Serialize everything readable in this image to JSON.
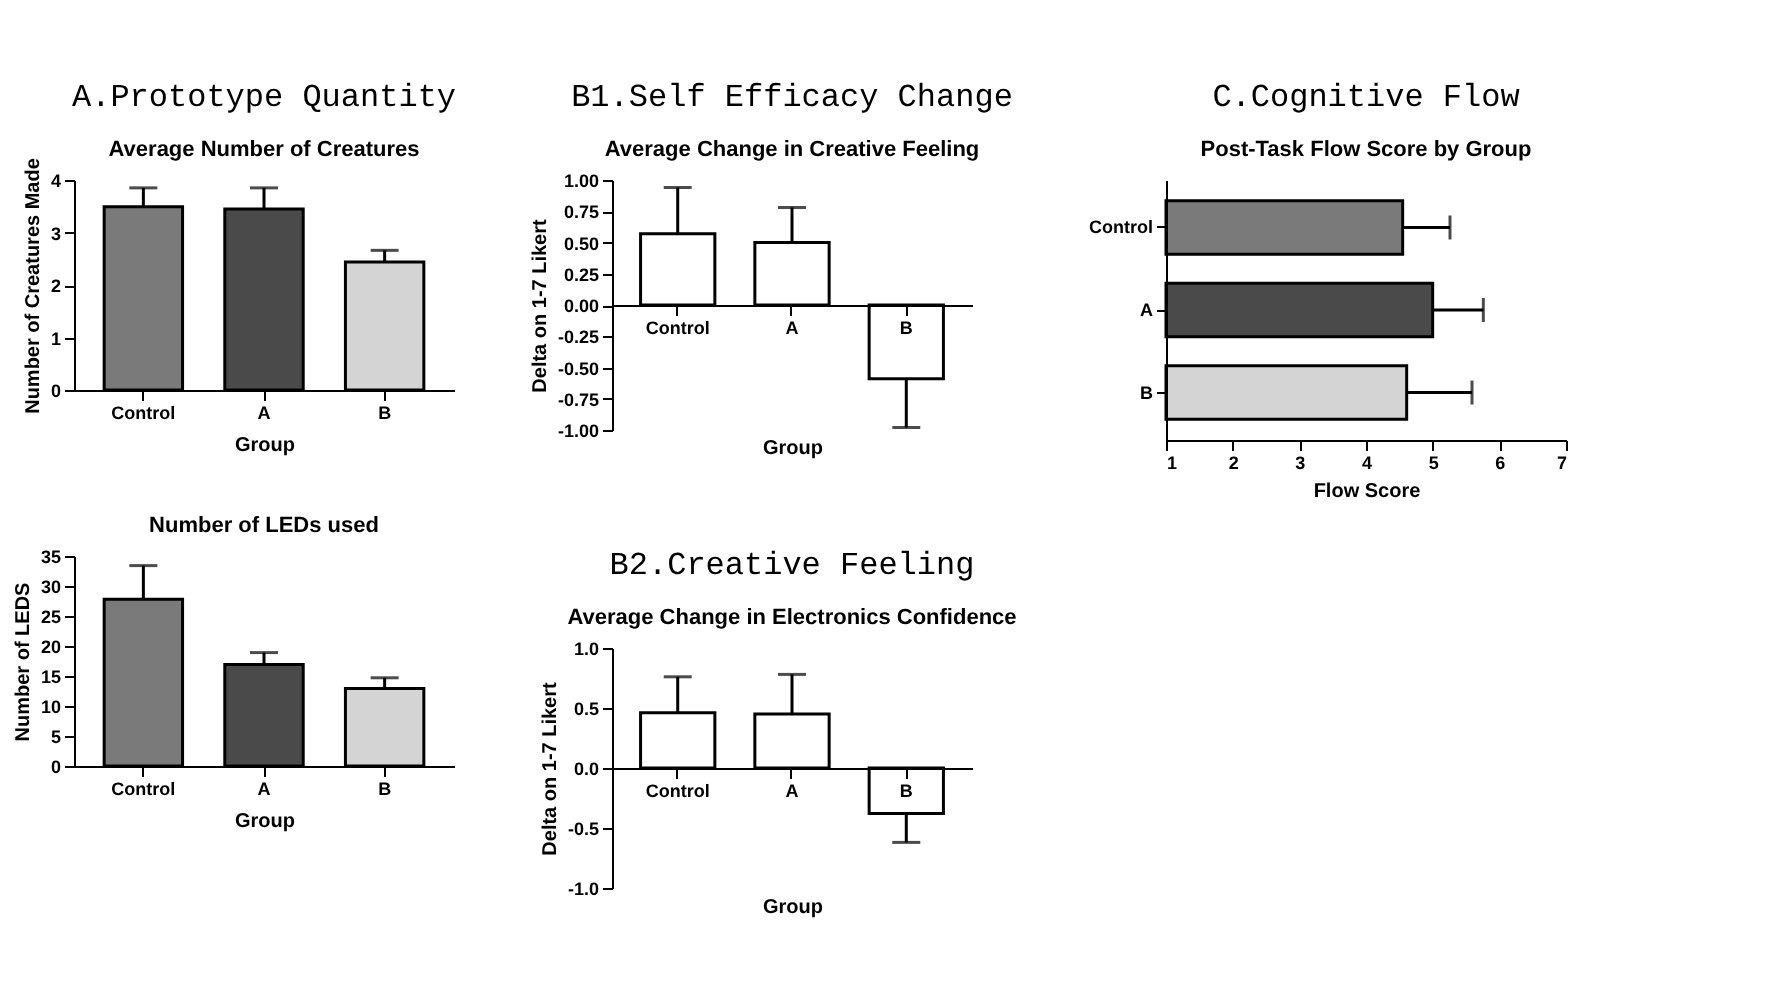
{
  "chart_data": [
    {
      "type": "bar",
      "annotations": [
        "A.Prototype Quantity"
      ],
      "title": "Average Number of Creatures",
      "xlabel": "Group",
      "ylabel": "Number of Creatures Made",
      "categories": [
        "Control",
        "A",
        "B"
      ],
      "values": [
        3.49,
        3.45,
        2.44
      ],
      "colors": [
        "#7a7a7a",
        "#4a4a4a",
        "#d4d4d4"
      ],
      "errors": [
        [
          3.49,
          3.85
        ],
        [
          3.45,
          3.85
        ],
        [
          2.44,
          2.66
        ]
      ],
      "ylim": [
        0,
        4
      ],
      "yticks": [
        0,
        1,
        2,
        3,
        4
      ],
      "grid": false,
      "legend": false
    },
    {
      "type": "bar",
      "title": "Number of LEDs used",
      "xlabel": "Group",
      "ylabel": "Number of LEDS",
      "categories": [
        "Control",
        "A",
        "B"
      ],
      "values": [
        27.8,
        16.9,
        12.9
      ],
      "colors": [
        "#7a7a7a",
        "#4a4a4a",
        "#d4d4d4"
      ],
      "errors": [
        [
          27.8,
          33.4
        ],
        [
          16.9,
          18.9
        ],
        [
          12.9,
          14.7
        ]
      ],
      "ylim": [
        0,
        35
      ],
      "yticks": [
        0,
        5,
        10,
        15,
        20,
        25,
        30,
        35
      ],
      "grid": false,
      "legend": false
    },
    {
      "type": "bar",
      "annotations": [
        "B1.Self Efficacy Change"
      ],
      "title": "Average Change in Creative Feeling",
      "xlabel": "Group",
      "ylabel": "Delta on 1-7 Likert",
      "categories": [
        "Control",
        "A",
        "B"
      ],
      "values": [
        0.57,
        0.5,
        -0.59
      ],
      "colors": [
        "#ffffff",
        "#ffffff",
        "#ffffff"
      ],
      "errors": [
        [
          0.57,
          0.94
        ],
        [
          0.5,
          0.78
        ],
        [
          -0.98,
          -0.59
        ]
      ],
      "ylim": [
        -1,
        1
      ],
      "yticks": [
        {
          "value": -1,
          "label": "-1.00"
        },
        {
          "value": -0.75,
          "label": "-0.75"
        },
        {
          "value": -0.5,
          "label": "-0.50"
        },
        {
          "value": -0.25,
          "label": "-0.25"
        },
        {
          "value": 0,
          "label": "0.00"
        },
        {
          "value": 0.25,
          "label": "0.25"
        },
        {
          "value": 0.5,
          "label": "0.50"
        },
        {
          "value": 0.75,
          "label": "0.75"
        },
        {
          "value": 1,
          "label": "1.00"
        }
      ],
      "grid": false,
      "legend": false
    },
    {
      "type": "bar",
      "annotations": [
        "B2.Creative Feeling"
      ],
      "title": "Average Change in Electronics Confidence",
      "xlabel": "Group",
      "ylabel": "Delta on 1-7 Likert",
      "categories": [
        "Control",
        "A",
        "B"
      ],
      "values": [
        0.46,
        0.45,
        -0.38
      ],
      "colors": [
        "#ffffff",
        "#ffffff",
        "#ffffff"
      ],
      "errors": [
        [
          0.46,
          0.76
        ],
        [
          0.45,
          0.78
        ],
        [
          -0.62,
          -0.38
        ]
      ],
      "ylim": [
        -1,
        1
      ],
      "yticks": [
        {
          "value": -1,
          "label": "-1.0"
        },
        {
          "value": -0.5,
          "label": "-0.5"
        },
        {
          "value": 0,
          "label": "0.0"
        },
        {
          "value": 0.5,
          "label": "0.5"
        },
        {
          "value": 1,
          "label": "1.0"
        }
      ],
      "grid": false,
      "legend": false
    },
    {
      "type": "bar",
      "orientation": "horizontal",
      "annotations": [
        "C.Cognitive Flow"
      ],
      "title": "Post-Task Flow Score by Group",
      "xlabel": "Flow Score",
      "categories": [
        "Control",
        "A",
        "B"
      ],
      "values": [
        4.55,
        5.0,
        4.61
      ],
      "colors": [
        "#7a7a7a",
        "#4a4a4a",
        "#d4d4d4"
      ],
      "errors": [
        [
          4.55,
          5.26
        ],
        [
          5.0,
          5.76
        ],
        [
          4.61,
          5.59
        ]
      ],
      "xlim": [
        1,
        7
      ],
      "xticks": [
        1,
        2,
        3,
        4,
        5,
        6,
        7
      ],
      "grid": false,
      "legend": false
    }
  ]
}
